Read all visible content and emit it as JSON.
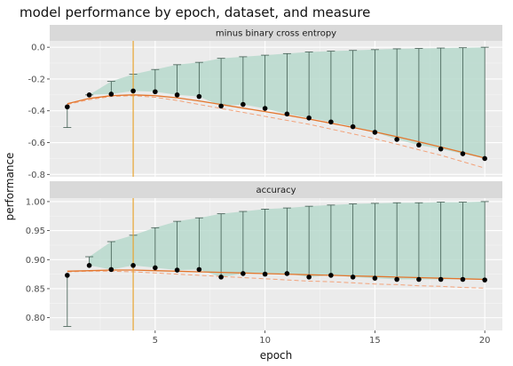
{
  "chart_data": {
    "type": "line",
    "title": "model performance by epoch, dataset, and measure",
    "xlabel": "epoch",
    "ylabel": "performance",
    "vline_x": 4,
    "x_ticks": [
      5,
      10,
      15,
      20
    ],
    "xlim": [
      0.2,
      20.8
    ],
    "colors": {
      "ribbon": "#b7d9cc",
      "whisker": "#3f5b50",
      "smooth": "#e3762d",
      "dashed": "#f2a27a",
      "vline": "#e8a532",
      "point": "#000000"
    },
    "panels": [
      {
        "strip": "minus binary cross entropy",
        "ylim": [
          -0.815,
          0.04
        ],
        "y_ticks": [
          0.0,
          -0.2,
          -0.4,
          -0.6,
          -0.8
        ],
        "y_tick_labels": [
          "0.0",
          "-0.2",
          "-0.4",
          "-0.6",
          "-0.8"
        ],
        "epochs": [
          1,
          2,
          3,
          4,
          5,
          6,
          7,
          8,
          9,
          10,
          11,
          12,
          13,
          14,
          15,
          16,
          17,
          18,
          19,
          20
        ],
        "training": [
          -0.505,
          -0.3,
          -0.215,
          -0.17,
          -0.14,
          -0.11,
          -0.095,
          -0.07,
          -0.06,
          -0.05,
          -0.04,
          -0.03,
          -0.025,
          -0.02,
          -0.015,
          -0.01,
          -0.008,
          -0.005,
          -0.003,
          0.0
        ],
        "validation": [
          -0.375,
          -0.3,
          -0.295,
          -0.275,
          -0.28,
          -0.3,
          -0.31,
          -0.37,
          -0.36,
          -0.385,
          -0.42,
          -0.445,
          -0.47,
          -0.5,
          -0.535,
          -0.58,
          -0.615,
          -0.64,
          -0.67,
          -0.7
        ],
        "smooth": [
          -0.355,
          -0.322,
          -0.305,
          -0.3,
          -0.305,
          -0.318,
          -0.338,
          -0.36,
          -0.383,
          -0.405,
          -0.428,
          -0.452,
          -0.478,
          -0.505,
          -0.533,
          -0.563,
          -0.595,
          -0.628,
          -0.662,
          -0.697
        ],
        "dashed": [
          -0.36,
          -0.33,
          -0.31,
          -0.305,
          -0.315,
          -0.335,
          -0.36,
          -0.385,
          -0.41,
          -0.435,
          -0.46,
          -0.485,
          -0.515,
          -0.545,
          -0.575,
          -0.61,
          -0.645,
          -0.68,
          -0.72,
          -0.76
        ]
      },
      {
        "strip": "accuracy",
        "ylim": [
          0.778,
          1.006
        ],
        "y_ticks": [
          0.8,
          0.85,
          0.9,
          0.95,
          1.0
        ],
        "y_tick_labels": [
          "0.80",
          "0.85",
          "0.90",
          "0.95",
          "1.00"
        ],
        "epochs": [
          1,
          2,
          3,
          4,
          5,
          6,
          7,
          8,
          9,
          10,
          11,
          12,
          13,
          14,
          15,
          16,
          17,
          18,
          19,
          20
        ],
        "training": [
          0.785,
          0.905,
          0.931,
          0.942,
          0.955,
          0.966,
          0.972,
          0.979,
          0.983,
          0.987,
          0.989,
          0.992,
          0.994,
          0.996,
          0.997,
          0.998,
          0.998,
          0.999,
          0.999,
          1.0
        ],
        "validation": [
          0.873,
          0.89,
          0.883,
          0.89,
          0.886,
          0.882,
          0.883,
          0.87,
          0.876,
          0.875,
          0.876,
          0.87,
          0.873,
          0.87,
          0.868,
          0.866,
          0.866,
          0.866,
          0.866,
          0.865
        ],
        "smooth": [
          0.88,
          0.881,
          0.882,
          0.882,
          0.881,
          0.88,
          0.879,
          0.878,
          0.877,
          0.876,
          0.875,
          0.874,
          0.873,
          0.872,
          0.871,
          0.87,
          0.869,
          0.868,
          0.867,
          0.866
        ],
        "dashed": [
          0.879,
          0.88,
          0.88,
          0.879,
          0.877,
          0.875,
          0.873,
          0.871,
          0.869,
          0.867,
          0.865,
          0.863,
          0.862,
          0.86,
          0.858,
          0.857,
          0.855,
          0.854,
          0.852,
          0.851
        ]
      }
    ]
  }
}
